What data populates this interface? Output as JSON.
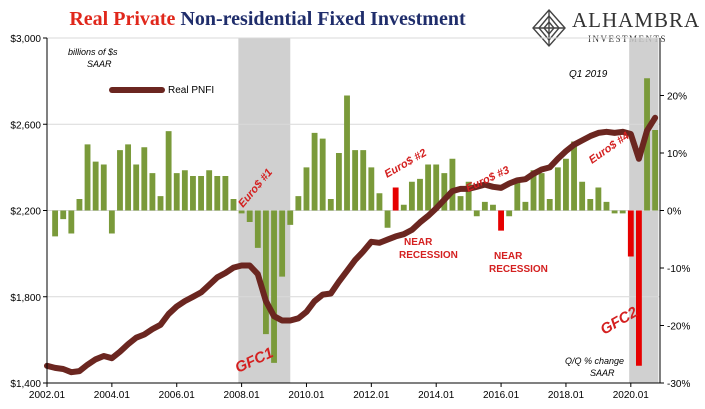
{
  "title": {
    "part1": "Real Private",
    "part2": "Non-residential Fixed Investment"
  },
  "logo": {
    "name": "ALHAMBRA",
    "sub": "INVESTMENTS",
    "icon": "diamond-emblem-icon"
  },
  "colors": {
    "line": "#6b2620",
    "bar_positive": "#7a9a3a",
    "bar_negative": "#e60000",
    "recession_shade": "#c8c8c8",
    "annotation_red": "#d42020",
    "title_red": "#e0271b",
    "title_blue": "#1f2d6b"
  },
  "chart_data": {
    "type": "bar+line",
    "left_axis": {
      "label_line1": "billions of $s",
      "label_line2": "SAAR",
      "ticks": [
        1400,
        1800,
        2200,
        2600,
        3000
      ],
      "tick_labels": [
        "$1,400",
        "$1,800",
        "$2,200",
        "$2,600",
        "$3,000"
      ],
      "ylim": [
        1400,
        3000
      ]
    },
    "right_axis": {
      "label_line1": "Q/Q % change",
      "label_line2": "SAAR",
      "ticks": [
        -30,
        -20,
        -10,
        0,
        10,
        20
      ],
      "tick_labels": [
        "-30%",
        "-20%",
        "-10%",
        "0%",
        "10%",
        "20%"
      ],
      "ylim": [
        -30,
        30
      ]
    },
    "x_axis": {
      "tick_values": [
        2002,
        2004,
        2006,
        2008,
        2010,
        2012,
        2014,
        2016,
        2018,
        2020
      ],
      "tick_labels": [
        "2002.01",
        "2004.01",
        "2006.01",
        "2008.01",
        "2010.01",
        "2012.01",
        "2014.01",
        "2016.01",
        "2018.01",
        "2020.01"
      ],
      "xlim": [
        2002.0,
        2020.9
      ]
    },
    "legend": {
      "label": "Real PNFI",
      "placement": "top-left"
    },
    "recessions": [
      {
        "start": 2007.9,
        "end": 2009.5
      },
      {
        "start": 2019.95,
        "end": 2020.85
      }
    ],
    "line_series": {
      "name": "Real PNFI",
      "x": [
        2002.0,
        2002.25,
        2002.5,
        2002.75,
        2003.0,
        2003.25,
        2003.5,
        2003.75,
        2004.0,
        2004.25,
        2004.5,
        2004.75,
        2005.0,
        2005.25,
        2005.5,
        2005.75,
        2006.0,
        2006.25,
        2006.5,
        2006.75,
        2007.0,
        2007.25,
        2007.5,
        2007.75,
        2008.0,
        2008.25,
        2008.5,
        2008.75,
        2009.0,
        2009.25,
        2009.5,
        2009.75,
        2010.0,
        2010.25,
        2010.5,
        2010.75,
        2011.0,
        2011.25,
        2011.5,
        2011.75,
        2012.0,
        2012.25,
        2012.5,
        2012.75,
        2013.0,
        2013.25,
        2013.5,
        2013.75,
        2014.0,
        2014.25,
        2014.5,
        2014.75,
        2015.0,
        2015.25,
        2015.5,
        2015.75,
        2016.0,
        2016.25,
        2016.5,
        2016.75,
        2017.0,
        2017.25,
        2017.5,
        2017.75,
        2018.0,
        2018.25,
        2018.5,
        2018.75,
        2019.0,
        2019.25,
        2019.5,
        2019.75,
        2020.0,
        2020.25,
        2020.5,
        2020.75
      ],
      "values": [
        1480,
        1470,
        1465,
        1450,
        1455,
        1485,
        1510,
        1525,
        1515,
        1545,
        1580,
        1610,
        1625,
        1650,
        1670,
        1720,
        1755,
        1780,
        1800,
        1820,
        1855,
        1890,
        1910,
        1935,
        1945,
        1945,
        1905,
        1780,
        1710,
        1690,
        1690,
        1700,
        1730,
        1780,
        1810,
        1815,
        1870,
        1920,
        1970,
        2010,
        2055,
        2050,
        2065,
        2080,
        2090,
        2110,
        2145,
        2175,
        2210,
        2250,
        2290,
        2300,
        2300,
        2310,
        2320,
        2310,
        2305,
        2325,
        2340,
        2345,
        2370,
        2390,
        2400,
        2440,
        2475,
        2505,
        2525,
        2545,
        2560,
        2565,
        2560,
        2565,
        2555,
        2440,
        2570,
        2630
      ]
    },
    "bar_series": {
      "name": "Q/Q % change SAAR",
      "x": [
        2002.25,
        2002.5,
        2002.75,
        2003.0,
        2003.25,
        2003.5,
        2003.75,
        2004.0,
        2004.25,
        2004.5,
        2004.75,
        2005.0,
        2005.25,
        2005.5,
        2005.75,
        2006.0,
        2006.25,
        2006.5,
        2006.75,
        2007.0,
        2007.25,
        2007.5,
        2007.75,
        2008.0,
        2008.25,
        2008.5,
        2008.75,
        2009.0,
        2009.25,
        2009.5,
        2009.75,
        2010.0,
        2010.25,
        2010.5,
        2010.75,
        2011.0,
        2011.25,
        2011.5,
        2011.75,
        2012.0,
        2012.25,
        2012.5,
        2012.75,
        2013.0,
        2013.25,
        2013.5,
        2013.75,
        2014.0,
        2014.25,
        2014.5,
        2014.75,
        2015.0,
        2015.25,
        2015.5,
        2015.75,
        2016.0,
        2016.25,
        2016.5,
        2016.75,
        2017.0,
        2017.25,
        2017.5,
        2017.75,
        2018.0,
        2018.25,
        2018.5,
        2018.75,
        2019.0,
        2019.25,
        2019.5,
        2019.75,
        2020.0,
        2020.25,
        2020.5,
        2020.75
      ],
      "values": [
        -4.5,
        -1.5,
        -4.0,
        2.0,
        11.5,
        8.5,
        8.0,
        -4.0,
        10.5,
        11.5,
        8.0,
        11.0,
        6.5,
        2.5,
        13.8,
        6.5,
        7.0,
        6.0,
        6.0,
        7.0,
        6.0,
        6.0,
        2.0,
        -0.5,
        -2.0,
        -6.5,
        -21.5,
        -26.5,
        -11.5,
        -2.5,
        2.5,
        7.5,
        13.5,
        12.5,
        2.0,
        10.0,
        20.0,
        10.5,
        10.5,
        7.5,
        3.0,
        -3.0,
        4.0,
        1.0,
        5.0,
        5.5,
        8.0,
        8.0,
        6.5,
        9.0,
        2.5,
        5.0,
        -1.0,
        1.5,
        1.0,
        -3.5,
        -1.0,
        5.0,
        1.5,
        7.0,
        6.5,
        2.0,
        7.5,
        9.0,
        12.0,
        5.0,
        2.0,
        4.0,
        1.5,
        -0.5,
        -0.5,
        -8.0,
        -27.0,
        23.0,
        14.0
      ]
    },
    "annotations": [
      {
        "text": "Euro$ #1"
      },
      {
        "text": "Euro$ #2"
      },
      {
        "text": "Euro$ #3"
      },
      {
        "text": "Euro$ #4"
      },
      {
        "text": "GFC1"
      },
      {
        "text": "GFC2"
      },
      {
        "text": "NEAR RECESSION"
      },
      {
        "text": "NEAR RECESSION"
      },
      {
        "text": "Q1 2019"
      }
    ]
  }
}
